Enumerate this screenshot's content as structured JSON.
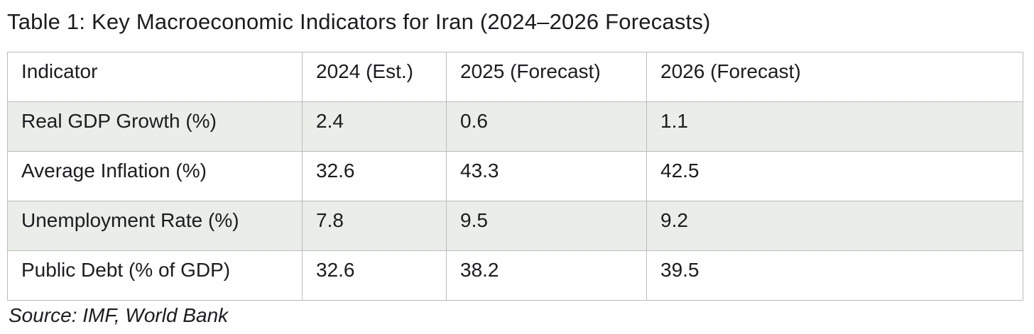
{
  "title": "Table 1: Key Macroeconomic Indicators for Iran (2024–2026 Forecasts)",
  "source": "Source: IMF, World Bank",
  "colors": {
    "row_alt_bg": "#e9eee9",
    "border": "#b9bcb9",
    "text": "#1c1c1e"
  },
  "chart_data": {
    "type": "table",
    "title": "Table 1: Key Macroeconomic Indicators for Iran (2024–2026 Forecasts)",
    "columns": [
      "Indicator",
      "2024 (Est.)",
      "2025 (Forecast)",
      "2026 (Forecast)"
    ],
    "rows": [
      {
        "indicator": "Real GDP Growth (%)",
        "values": [
          "2.4",
          "0.6",
          "1.1"
        ]
      },
      {
        "indicator": "Average Inflation (%)",
        "values": [
          "32.6",
          "43.3",
          "42.5"
        ]
      },
      {
        "indicator": "Unemployment Rate (%)",
        "values": [
          "7.8",
          "9.5",
          "9.2"
        ]
      },
      {
        "indicator": "Public Debt (% of GDP)",
        "values": [
          "32.6",
          "38.2",
          "39.5"
        ]
      }
    ],
    "note": "Source: IMF, World Bank"
  }
}
